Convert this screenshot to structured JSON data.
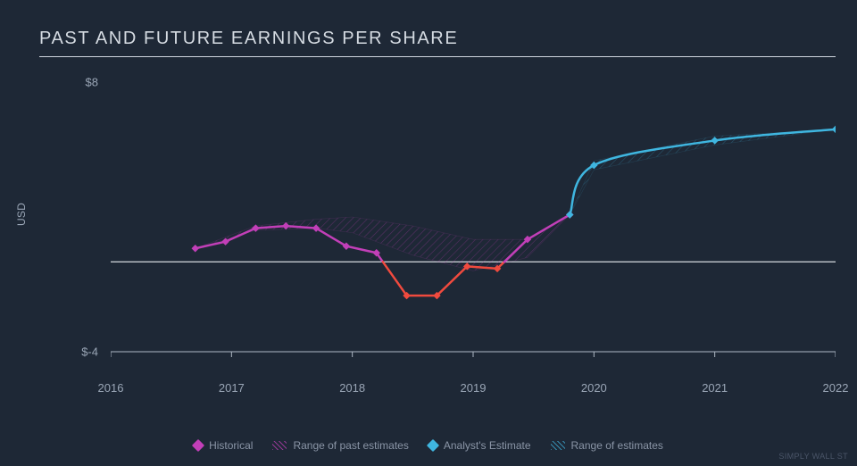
{
  "chart": {
    "type": "line",
    "title": "PAST AND FUTURE EARNINGS PER SHARE",
    "background_color": "#1e2836",
    "title_color": "#d5dbe2",
    "title_fontsize": 20,
    "title_letter_spacing": "0.08em",
    "rule_color": "#cfd6de",
    "x": {
      "label": null,
      "min": 2016,
      "max": 2022,
      "ticks": [
        2016,
        2017,
        2018,
        2019,
        2020,
        2021,
        2022
      ],
      "tick_color": "#9aa6b6",
      "tick_fontsize": 13,
      "axis_line_color": "#aeb8c5"
    },
    "y": {
      "label": "USD",
      "min": -4,
      "max": 8,
      "ticks": [
        {
          "v": 8,
          "label": "$8"
        },
        {
          "v": -4,
          "label": "$-4"
        }
      ],
      "zero_line_color": "#e8ecf1",
      "label_color": "#9aa6b6",
      "label_fontsize": 12
    },
    "series": {
      "historical": {
        "color": "#c23fb8",
        "line_width": 2.5,
        "marker": "diamond",
        "marker_size": 6,
        "points": [
          {
            "x": 2016.7,
            "y": 0.6
          },
          {
            "x": 2016.95,
            "y": 0.9
          },
          {
            "x": 2017.2,
            "y": 1.5
          },
          {
            "x": 2017.45,
            "y": 1.6
          },
          {
            "x": 2017.7,
            "y": 1.5
          },
          {
            "x": 2017.95,
            "y": 0.7
          },
          {
            "x": 2018.2,
            "y": 0.4
          },
          {
            "x": 2018.45,
            "y": -1.5
          },
          {
            "x": 2018.7,
            "y": -1.5
          },
          {
            "x": 2018.95,
            "y": -0.2
          },
          {
            "x": 2019.2,
            "y": -0.3
          },
          {
            "x": 2019.45,
            "y": 1.0
          },
          {
            "x": 2019.8,
            "y": 2.1
          }
        ],
        "negative_color": "#f04a3e"
      },
      "past_estimate_band": {
        "color": "#c23fb8",
        "opacity": 0.35,
        "pattern": "hatch",
        "upper": [
          {
            "x": 2016.7,
            "y": 0.6
          },
          {
            "x": 2017.2,
            "y": 1.6
          },
          {
            "x": 2017.7,
            "y": 1.9
          },
          {
            "x": 2018.0,
            "y": 2.0
          },
          {
            "x": 2018.5,
            "y": 1.6
          },
          {
            "x": 2019.0,
            "y": 1.0
          },
          {
            "x": 2019.45,
            "y": 1.0
          },
          {
            "x": 2019.8,
            "y": 2.1
          }
        ],
        "lower": [
          {
            "x": 2016.7,
            "y": 0.6
          },
          {
            "x": 2017.2,
            "y": 1.4
          },
          {
            "x": 2017.7,
            "y": 1.5
          },
          {
            "x": 2018.0,
            "y": 1.3
          },
          {
            "x": 2018.5,
            "y": 0.3
          },
          {
            "x": 2019.0,
            "y": -0.4
          },
          {
            "x": 2019.45,
            "y": 0.2
          },
          {
            "x": 2019.8,
            "y": 2.1
          }
        ]
      },
      "analyst": {
        "color": "#3fb6e0",
        "line_width": 2.5,
        "marker": "diamond",
        "marker_size": 6,
        "points": [
          {
            "x": 2019.8,
            "y": 2.1
          },
          {
            "x": 2020.0,
            "y": 4.3
          },
          {
            "x": 2021.0,
            "y": 5.4
          },
          {
            "x": 2022.0,
            "y": 5.9
          }
        ]
      },
      "future_estimate_band": {
        "color": "#3fb6e0",
        "opacity": 0.3,
        "pattern": "hatch",
        "upper": [
          {
            "x": 2019.8,
            "y": 2.1
          },
          {
            "x": 2020.0,
            "y": 4.5
          },
          {
            "x": 2021.0,
            "y": 5.6
          },
          {
            "x": 2022.0,
            "y": 5.9
          }
        ],
        "lower": [
          {
            "x": 2019.8,
            "y": 2.1
          },
          {
            "x": 2020.0,
            "y": 4.1
          },
          {
            "x": 2021.0,
            "y": 5.2
          },
          {
            "x": 2022.0,
            "y": 5.9
          }
        ]
      }
    },
    "legend": {
      "position": "bottom-center",
      "items": [
        {
          "kind": "line-diamond",
          "color": "#c23fb8",
          "label": "Historical"
        },
        {
          "kind": "hatch",
          "color": "#c23fb8",
          "label": "Range of past estimates"
        },
        {
          "kind": "line-diamond",
          "color": "#3fb6e0",
          "label": "Analyst's Estimate"
        },
        {
          "kind": "hatch",
          "color": "#3fb6e0",
          "label": "Range of estimates"
        }
      ],
      "text_color": "#8a95a6",
      "fontsize": 12
    },
    "attribution": "SIMPLY WALL ST"
  }
}
